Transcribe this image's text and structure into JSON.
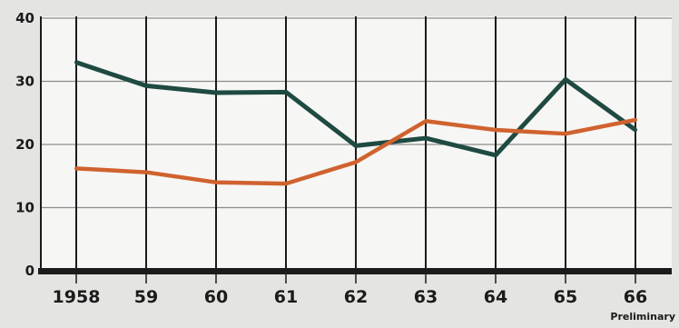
{
  "chart_data": {
    "type": "line",
    "title": "",
    "xlabel": "",
    "ylabel": "",
    "x": [
      "1958",
      "59",
      "60",
      "61",
      "62",
      "63",
      "64",
      "65",
      "66"
    ],
    "x_note": "Preliminary",
    "ylim": [
      0,
      40
    ],
    "yticks": [
      0,
      10,
      20,
      30,
      40
    ],
    "grid": "both",
    "legend": "none",
    "series": [
      {
        "color": "#1f4a42",
        "values": [
          33,
          29.3,
          28.2,
          28.3,
          19.8,
          21,
          18.3,
          30.3,
          22.3
        ]
      },
      {
        "color": "#d0622f",
        "values": [
          16.2,
          15.6,
          14,
          13.8,
          17.2,
          23.7,
          22.3,
          21.7,
          23.9
        ]
      }
    ],
    "colors": {
      "background": "#e4e4e2",
      "plot_background": "#f6f6f4",
      "axis": "#1b1b1b",
      "grid": "#8c8c8c"
    }
  }
}
